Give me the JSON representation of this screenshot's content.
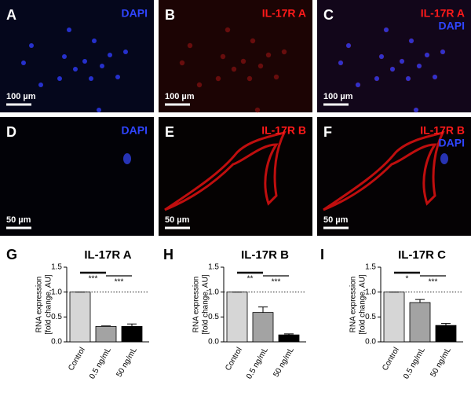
{
  "panels": [
    {
      "letter": "A",
      "stains": [
        {
          "text": "DAPI",
          "color": "#2f45ff"
        }
      ],
      "scale": "100 µm",
      "background": "#05071c"
    },
    {
      "letter": "B",
      "stains": [
        {
          "text": "IL-17R A",
          "color": "#ff1a1a"
        }
      ],
      "scale": "100 µm",
      "background": "#1c0404"
    },
    {
      "letter": "C",
      "stains": [
        {
          "text": "IL-17R A",
          "color": "#ff1a1a"
        },
        {
          "text": "DAPI",
          "color": "#2f45ff"
        }
      ],
      "scale": "100 µm",
      "background": "#12061a"
    },
    {
      "letter": "D",
      "stains": [
        {
          "text": "DAPI",
          "color": "#2f45ff"
        }
      ],
      "scale": "50 µm",
      "background": "#020207"
    },
    {
      "letter": "E",
      "stains": [
        {
          "text": "IL-17R B",
          "color": "#ff1a1a"
        }
      ],
      "scale": "50 µm",
      "background": "#050202"
    },
    {
      "letter": "F",
      "stains": [
        {
          "text": "IL-17R B",
          "color": "#ff1a1a"
        },
        {
          "text": "DAPI",
          "color": "#2f45ff"
        }
      ],
      "scale": "50 µm",
      "background": "#050204"
    }
  ],
  "chart_data": [
    {
      "type": "bar",
      "panel": "G",
      "title": "IL-17R A",
      "y_label": [
        "RNA expression",
        "[fold change, AU]"
      ],
      "categories": [
        "Control",
        "0.5 ng/mL",
        "50 ng/mL"
      ],
      "values": [
        1.0,
        0.31,
        0.31
      ],
      "errors": [
        0,
        0.01,
        0.05
      ],
      "colors": [
        "#d6d6d6",
        "#a3a3a3",
        "#000000"
      ],
      "ylim": [
        0,
        1.5
      ],
      "yticks": [
        {
          "value": 0,
          "label": "0.0"
        },
        {
          "value": 0.5,
          "label": "0.5"
        },
        {
          "value": 1,
          "label": "1.0"
        },
        {
          "value": 1.5,
          "label": "1.5"
        }
      ],
      "reference_line": 1.0,
      "significance": [
        "***",
        "***"
      ]
    },
    {
      "type": "bar",
      "panel": "H",
      "title": "IL-17R B",
      "y_label": [
        "RNA expression",
        "[fold change, AU]"
      ],
      "categories": [
        "Control",
        "0.5 ng/mL",
        "50 ng/mL"
      ],
      "values": [
        1.0,
        0.59,
        0.14
      ],
      "errors": [
        0,
        0.11,
        0.02
      ],
      "colors": [
        "#d6d6d6",
        "#a3a3a3",
        "#000000"
      ],
      "ylim": [
        0,
        1.5
      ],
      "yticks": [
        {
          "value": 0,
          "label": "0.0"
        },
        {
          "value": 0.5,
          "label": "0.5"
        },
        {
          "value": 1,
          "label": "1.0"
        },
        {
          "value": 1.5,
          "label": "1.5"
        }
      ],
      "reference_line": 1.0,
      "significance": [
        "**",
        "***"
      ]
    },
    {
      "type": "bar",
      "panel": "I",
      "title": "IL-17R C",
      "y_label": [
        "RNA expression",
        "[fold change, AU]"
      ],
      "categories": [
        "Control",
        "0.5 ng/mL",
        "50 ng/mL"
      ],
      "values": [
        1.0,
        0.79,
        0.33
      ],
      "errors": [
        0,
        0.06,
        0.04
      ],
      "colors": [
        "#d6d6d6",
        "#a3a3a3",
        "#000000"
      ],
      "ylim": [
        0,
        1.5
      ],
      "yticks": [
        {
          "value": 0,
          "label": "0.0"
        },
        {
          "value": 0.5,
          "label": "0.5"
        },
        {
          "value": 1,
          "label": "1.0"
        },
        {
          "value": 1.5,
          "label": "1.5"
        }
      ],
      "reference_line": 1.0,
      "significance": [
        "*",
        "***"
      ]
    }
  ]
}
